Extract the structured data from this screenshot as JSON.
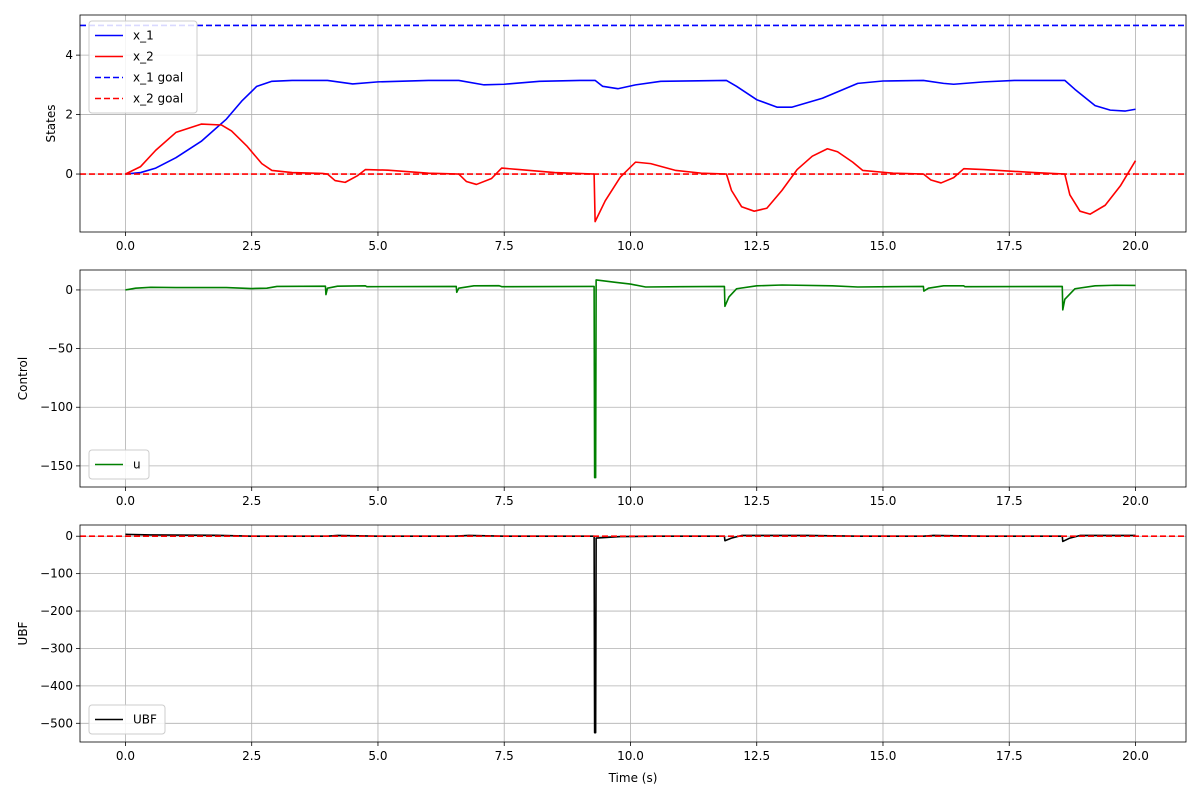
{
  "chart_data": [
    {
      "type": "line",
      "ylabel": "States",
      "xlabel": "",
      "xlim": [
        -0.9,
        21.0
      ],
      "ylim": [
        -1.95,
        5.35
      ],
      "xticks": [
        0.0,
        2.5,
        5.0,
        7.5,
        10.0,
        12.5,
        15.0,
        17.5,
        20.0
      ],
      "xtick_labels": [
        "0.0",
        "2.5",
        "5.0",
        "7.5",
        "10.0",
        "12.5",
        "15.0",
        "17.5",
        "20.0"
      ],
      "yticks": [
        0,
        2,
        4
      ],
      "ytick_labels": [
        "0",
        "2",
        "4"
      ],
      "grid": true,
      "legend": "upper-left",
      "series": [
        {
          "name": "x_1",
          "color": "#0000ff",
          "style": "solid",
          "points": [
            [
              0,
              0
            ],
            [
              0.3,
              0.05
            ],
            [
              0.6,
              0.2
            ],
            [
              1.0,
              0.55
            ],
            [
              1.5,
              1.1
            ],
            [
              2.0,
              1.85
            ],
            [
              2.3,
              2.45
            ],
            [
              2.6,
              2.95
            ],
            [
              2.9,
              3.12
            ],
            [
              3.3,
              3.15
            ],
            [
              4.0,
              3.15
            ],
            [
              4.5,
              3.03
            ],
            [
              5.0,
              3.1
            ],
            [
              6.0,
              3.15
            ],
            [
              6.6,
              3.15
            ],
            [
              7.1,
              3.0
            ],
            [
              7.5,
              3.02
            ],
            [
              8.2,
              3.12
            ],
            [
              9.0,
              3.15
            ],
            [
              9.3,
              3.15
            ],
            [
              9.45,
              2.95
            ],
            [
              9.75,
              2.87
            ],
            [
              10.1,
              3.0
            ],
            [
              10.6,
              3.12
            ],
            [
              11.9,
              3.15
            ],
            [
              12.1,
              2.95
            ],
            [
              12.5,
              2.5
            ],
            [
              12.9,
              2.25
            ],
            [
              13.2,
              2.25
            ],
            [
              13.8,
              2.55
            ],
            [
              14.5,
              3.05
            ],
            [
              15.0,
              3.13
            ],
            [
              15.8,
              3.15
            ],
            [
              16.2,
              3.05
            ],
            [
              16.4,
              3.02
            ],
            [
              17.0,
              3.1
            ],
            [
              17.6,
              3.15
            ],
            [
              18.6,
              3.15
            ],
            [
              18.8,
              2.85
            ],
            [
              19.2,
              2.3
            ],
            [
              19.5,
              2.15
            ],
            [
              19.8,
              2.12
            ],
            [
              20.0,
              2.18
            ]
          ]
        },
        {
          "name": "x_2",
          "color": "#ff0000",
          "style": "solid",
          "points": [
            [
              0,
              0
            ],
            [
              0.3,
              0.25
            ],
            [
              0.6,
              0.8
            ],
            [
              1.0,
              1.4
            ],
            [
              1.5,
              1.68
            ],
            [
              1.9,
              1.65
            ],
            [
              2.1,
              1.45
            ],
            [
              2.4,
              0.95
            ],
            [
              2.7,
              0.35
            ],
            [
              2.9,
              0.12
            ],
            [
              3.3,
              0.05
            ],
            [
              3.9,
              0.02
            ],
            [
              4.0,
              0
            ],
            [
              4.15,
              -0.22
            ],
            [
              4.35,
              -0.28
            ],
            [
              4.6,
              -0.05
            ],
            [
              4.75,
              0.15
            ],
            [
              5.2,
              0.13
            ],
            [
              6.0,
              0.03
            ],
            [
              6.6,
              0
            ],
            [
              6.75,
              -0.25
            ],
            [
              6.95,
              -0.35
            ],
            [
              7.25,
              -0.15
            ],
            [
              7.45,
              0.2
            ],
            [
              7.8,
              0.15
            ],
            [
              8.5,
              0.05
            ],
            [
              9.28,
              0
            ],
            [
              9.3,
              -1.6
            ],
            [
              9.5,
              -0.9
            ],
            [
              9.8,
              -0.1
            ],
            [
              10.1,
              0.4
            ],
            [
              10.4,
              0.35
            ],
            [
              10.9,
              0.12
            ],
            [
              11.4,
              0.03
            ],
            [
              11.9,
              0
            ],
            [
              12.0,
              -0.55
            ],
            [
              12.2,
              -1.1
            ],
            [
              12.45,
              -1.25
            ],
            [
              12.7,
              -1.15
            ],
            [
              13.0,
              -0.55
            ],
            [
              13.3,
              0.15
            ],
            [
              13.6,
              0.6
            ],
            [
              13.9,
              0.85
            ],
            [
              14.1,
              0.75
            ],
            [
              14.4,
              0.4
            ],
            [
              14.6,
              0.12
            ],
            [
              15.2,
              0.03
            ],
            [
              15.8,
              0
            ],
            [
              15.95,
              -0.2
            ],
            [
              16.15,
              -0.3
            ],
            [
              16.4,
              -0.12
            ],
            [
              16.6,
              0.18
            ],
            [
              17.0,
              0.15
            ],
            [
              18.0,
              0.05
            ],
            [
              18.6,
              0
            ],
            [
              18.7,
              -0.7
            ],
            [
              18.9,
              -1.25
            ],
            [
              19.1,
              -1.35
            ],
            [
              19.4,
              -1.05
            ],
            [
              19.7,
              -0.4
            ],
            [
              20.0,
              0.45
            ]
          ]
        },
        {
          "name": "x_1 goal",
          "color": "#0000ff",
          "style": "dashed",
          "full_width": true,
          "points": [
            [
              -0.9,
              5
            ],
            [
              21.0,
              5
            ]
          ]
        },
        {
          "name": "x_2 goal",
          "color": "#ff0000",
          "style": "dashed",
          "full_width": true,
          "points": [
            [
              -0.9,
              0
            ],
            [
              21.0,
              0
            ]
          ]
        }
      ]
    },
    {
      "type": "line",
      "ylabel": "Control",
      "xlabel": "",
      "xlim": [
        -0.9,
        21.0
      ],
      "ylim": [
        -168,
        17
      ],
      "xticks": [
        0.0,
        2.5,
        5.0,
        7.5,
        10.0,
        12.5,
        15.0,
        17.5,
        20.0
      ],
      "xtick_labels": [
        "0.0",
        "2.5",
        "5.0",
        "7.5",
        "10.0",
        "12.5",
        "15.0",
        "17.5",
        "20.0"
      ],
      "yticks": [
        0,
        -50,
        -100,
        -150
      ],
      "ytick_labels": [
        "0",
        "−50",
        "−100",
        "−150"
      ],
      "grid": true,
      "legend": "lower-left",
      "series": [
        {
          "name": "u",
          "color": "#008000",
          "style": "solid",
          "points": [
            [
              0,
              0
            ],
            [
              0.2,
              1.5
            ],
            [
              0.5,
              2.2
            ],
            [
              1.0,
              2.0
            ],
            [
              2.0,
              2.0
            ],
            [
              2.5,
              1.2
            ],
            [
              2.8,
              1.5
            ],
            [
              3.0,
              3.0
            ],
            [
              3.96,
              3.2
            ],
            [
              3.97,
              -4
            ],
            [
              4.0,
              1.5
            ],
            [
              4.2,
              3.2
            ],
            [
              4.75,
              3.5
            ],
            [
              4.78,
              2.8
            ],
            [
              6.55,
              3.0
            ],
            [
              6.56,
              -2
            ],
            [
              6.6,
              1.5
            ],
            [
              6.9,
              3.5
            ],
            [
              7.4,
              3.6
            ],
            [
              7.45,
              2.8
            ],
            [
              9.25,
              3.0
            ],
            [
              9.28,
              3.0
            ],
            [
              9.29,
              -160
            ],
            [
              9.31,
              -160
            ],
            [
              9.32,
              8.5
            ],
            [
              9.7,
              6.5
            ],
            [
              10.0,
              5
            ],
            [
              10.3,
              2.5
            ],
            [
              11.0,
              2.8
            ],
            [
              11.86,
              3.0
            ],
            [
              11.87,
              -14
            ],
            [
              11.95,
              -6
            ],
            [
              12.1,
              1
            ],
            [
              12.5,
              3.5
            ],
            [
              13.0,
              4.2
            ],
            [
              14.0,
              3.5
            ],
            [
              14.5,
              2.5
            ],
            [
              15.8,
              3.0
            ],
            [
              15.81,
              -1
            ],
            [
              15.9,
              1.5
            ],
            [
              16.2,
              3.5
            ],
            [
              16.6,
              3.5
            ],
            [
              16.62,
              2.8
            ],
            [
              18.55,
              3.0
            ],
            [
              18.56,
              -17
            ],
            [
              18.6,
              -8
            ],
            [
              18.8,
              1
            ],
            [
              19.2,
              3.5
            ],
            [
              19.6,
              4.0
            ],
            [
              20.0,
              3.8
            ]
          ]
        }
      ]
    },
    {
      "type": "line",
      "ylabel": "UBF",
      "xlabel": "Time (s)",
      "xlim": [
        -0.9,
        21.0
      ],
      "ylim": [
        -550,
        30
      ],
      "xticks": [
        0.0,
        2.5,
        5.0,
        7.5,
        10.0,
        12.5,
        15.0,
        17.5,
        20.0
      ],
      "xtick_labels": [
        "0.0",
        "2.5",
        "5.0",
        "7.5",
        "10.0",
        "12.5",
        "15.0",
        "17.5",
        "20.0"
      ],
      "yticks": [
        0,
        -100,
        -200,
        -300,
        -400,
        -500
      ],
      "ytick_labels": [
        "0",
        "−100",
        "−200",
        "−300",
        "−400",
        "−500"
      ],
      "grid": true,
      "legend": "lower-left",
      "series": [
        {
          "name": "UBF",
          "color": "#000000",
          "style": "solid",
          "points": [
            [
              0,
              5
            ],
            [
              0.5,
              3.5
            ],
            [
              1.8,
              2.5
            ],
            [
              2.5,
              0
            ],
            [
              4.0,
              0
            ],
            [
              4.2,
              2
            ],
            [
              5.0,
              0
            ],
            [
              6.5,
              0
            ],
            [
              6.8,
              2
            ],
            [
              7.5,
              0
            ],
            [
              9.28,
              0
            ],
            [
              9.29,
              -525
            ],
            [
              9.31,
              -525
            ],
            [
              9.32,
              -5
            ],
            [
              9.8,
              -1
            ],
            [
              10.5,
              0
            ],
            [
              11.86,
              0
            ],
            [
              11.87,
              -12
            ],
            [
              12.0,
              -5
            ],
            [
              12.2,
              2
            ],
            [
              13.5,
              2
            ],
            [
              14.5,
              0
            ],
            [
              15.8,
              0
            ],
            [
              16.0,
              2
            ],
            [
              17.0,
              0
            ],
            [
              18.55,
              0
            ],
            [
              18.56,
              -14
            ],
            [
              18.7,
              -5
            ],
            [
              18.9,
              2
            ],
            [
              20.0,
              2
            ]
          ]
        },
        {
          "name": "",
          "color": "#ff0000",
          "style": "dashed",
          "full_width": true,
          "points": [
            [
              -0.9,
              0
            ],
            [
              21.0,
              0
            ]
          ]
        }
      ]
    }
  ]
}
